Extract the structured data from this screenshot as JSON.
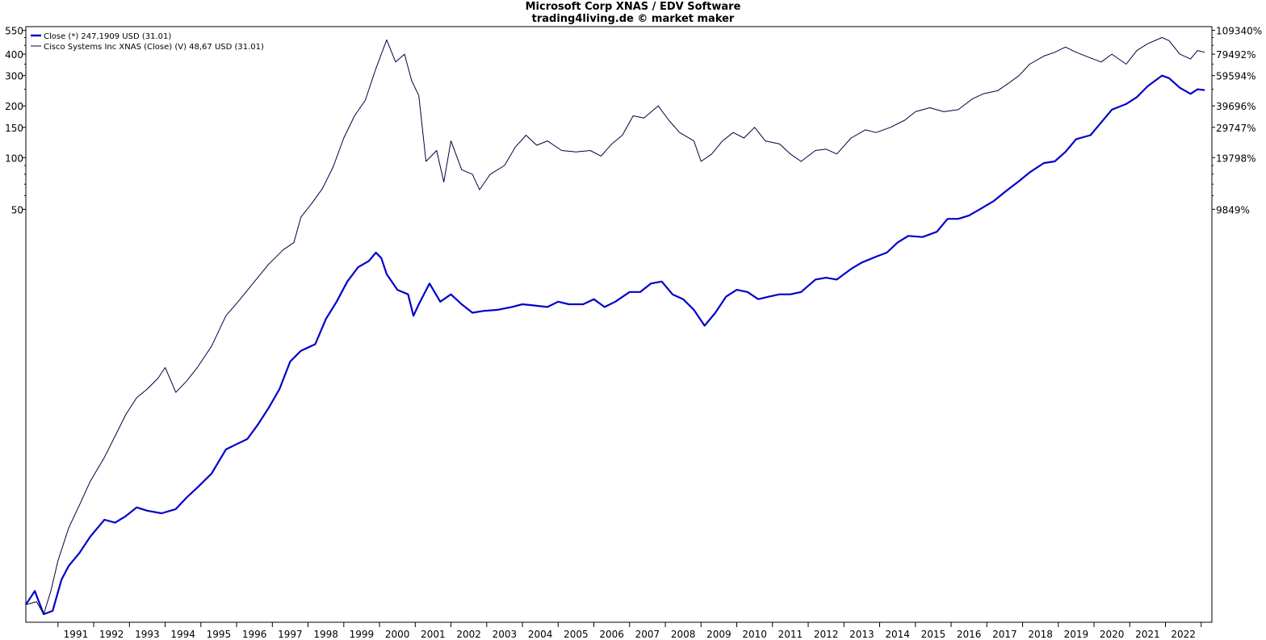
{
  "chart_data": {
    "type": "line",
    "title": "Microsoft Corp XNAS / EDV Software",
    "subtitle": "trading4living.de © market maker",
    "y_scale": "log",
    "left_axis": {
      "ticks": [
        550,
        400,
        300,
        200,
        150,
        100,
        50
      ],
      "labels": [
        "550",
        "400",
        "300",
        "200",
        "150",
        "100",
        "50"
      ]
    },
    "right_axis": {
      "labels": [
        "109340%",
        "79492%",
        "59594%",
        "39696%",
        "29747%",
        "19798%",
        "9849%"
      ]
    },
    "x_ticks": [
      "1991",
      "1992",
      "1993",
      "1994",
      "1995",
      "1996",
      "1997",
      "1998",
      "1999",
      "2000",
      "2001",
      "2002",
      "2003",
      "2004",
      "2005",
      "2006",
      "2007",
      "2008",
      "2009",
      "2010",
      "2011",
      "2012",
      "2013",
      "2014",
      "2015",
      "2016",
      "2017",
      "2018",
      "2019",
      "2020",
      "2021",
      "2022"
    ],
    "legend": [
      {
        "label": "Close (*) 247,1909 USD (31.01)",
        "color": "#0000cc",
        "weight": "bold"
      },
      {
        "label": "Cisco Systems Inc XNAS (Close) (V) 48,67 USD (31.01)",
        "color": "#000040",
        "weight": "thin"
      }
    ],
    "series": [
      {
        "color": "#0000cc",
        "points": [
          [
            1990.1,
            0.25
          ],
          [
            1990.35,
            0.3
          ],
          [
            1990.6,
            0.22
          ],
          [
            1990.85,
            0.23
          ],
          [
            1991.1,
            0.35
          ],
          [
            1991.3,
            0.42
          ],
          [
            1991.6,
            0.5
          ],
          [
            1991.9,
            0.62
          ],
          [
            1992.3,
            0.78
          ],
          [
            1992.6,
            0.75
          ],
          [
            1992.9,
            0.82
          ],
          [
            1993.2,
            0.92
          ],
          [
            1993.5,
            0.88
          ],
          [
            1993.9,
            0.85
          ],
          [
            1994.3,
            0.9
          ],
          [
            1994.6,
            1.05
          ],
          [
            1994.9,
            1.2
          ],
          [
            1995.3,
            1.45
          ],
          [
            1995.7,
            2.0
          ],
          [
            1996.0,
            2.15
          ],
          [
            1996.3,
            2.3
          ],
          [
            1996.6,
            2.8
          ],
          [
            1996.9,
            3.5
          ],
          [
            1997.2,
            4.5
          ],
          [
            1997.5,
            6.5
          ],
          [
            1997.8,
            7.5
          ],
          [
            1998.2,
            8.2
          ],
          [
            1998.5,
            11.5
          ],
          [
            1998.8,
            14.5
          ],
          [
            1999.1,
            19.0
          ],
          [
            1999.4,
            23.0
          ],
          [
            1999.7,
            25.0
          ],
          [
            1999.9,
            28.0
          ],
          [
            2000.05,
            26.0
          ],
          [
            2000.2,
            21.0
          ],
          [
            2000.5,
            17.0
          ],
          [
            2000.8,
            16.0
          ],
          [
            2000.95,
            12.0
          ],
          [
            2001.1,
            14.0
          ],
          [
            2001.4,
            18.5
          ],
          [
            2001.7,
            14.5
          ],
          [
            2002.0,
            16.0
          ],
          [
            2002.3,
            14.0
          ],
          [
            2002.6,
            12.5
          ],
          [
            2002.9,
            12.8
          ],
          [
            2003.3,
            13.0
          ],
          [
            2003.7,
            13.5
          ],
          [
            2004.0,
            14.0
          ],
          [
            2004.3,
            13.8
          ],
          [
            2004.7,
            13.5
          ],
          [
            2005.0,
            14.5
          ],
          [
            2005.3,
            14.0
          ],
          [
            2005.7,
            14.0
          ],
          [
            2006.0,
            15.0
          ],
          [
            2006.3,
            13.5
          ],
          [
            2006.6,
            14.5
          ],
          [
            2007.0,
            16.5
          ],
          [
            2007.3,
            16.5
          ],
          [
            2007.6,
            18.5
          ],
          [
            2007.9,
            19.0
          ],
          [
            2008.2,
            16.0
          ],
          [
            2008.5,
            15.0
          ],
          [
            2008.8,
            13.0
          ],
          [
            2009.1,
            10.5
          ],
          [
            2009.4,
            12.5
          ],
          [
            2009.7,
            15.5
          ],
          [
            2010.0,
            17.0
          ],
          [
            2010.3,
            16.5
          ],
          [
            2010.6,
            15.0
          ],
          [
            2010.9,
            15.5
          ],
          [
            2011.2,
            16.0
          ],
          [
            2011.5,
            16.0
          ],
          [
            2011.8,
            16.5
          ],
          [
            2012.2,
            19.5
          ],
          [
            2012.5,
            20.0
          ],
          [
            2012.8,
            19.5
          ],
          [
            2013.2,
            22.5
          ],
          [
            2013.5,
            24.5
          ],
          [
            2013.9,
            26.5
          ],
          [
            2014.2,
            28.0
          ],
          [
            2014.5,
            32.0
          ],
          [
            2014.8,
            35.0
          ],
          [
            2015.2,
            34.5
          ],
          [
            2015.6,
            37.0
          ],
          [
            2015.9,
            44.0
          ],
          [
            2016.2,
            44.0
          ],
          [
            2016.5,
            46.0
          ],
          [
            2016.8,
            50.0
          ],
          [
            2017.2,
            56.0
          ],
          [
            2017.5,
            63.0
          ],
          [
            2017.9,
            73.0
          ],
          [
            2018.2,
            82.0
          ],
          [
            2018.6,
            93.0
          ],
          [
            2018.9,
            95.0
          ],
          [
            2019.2,
            108.0
          ],
          [
            2019.5,
            128.0
          ],
          [
            2019.9,
            135.0
          ],
          [
            2020.2,
            160.0
          ],
          [
            2020.5,
            190.0
          ],
          [
            2020.9,
            205.0
          ],
          [
            2021.2,
            225.0
          ],
          [
            2021.5,
            260.0
          ],
          [
            2021.9,
            300.0
          ],
          [
            2022.1,
            290.0
          ],
          [
            2022.4,
            255.0
          ],
          [
            2022.7,
            235.0
          ],
          [
            2022.9,
            250.0
          ],
          [
            2023.1,
            247.0
          ]
        ]
      },
      {
        "color": "#000040",
        "points": [
          [
            1990.1,
            0.25
          ],
          [
            1990.4,
            0.26
          ],
          [
            1990.6,
            0.22
          ],
          [
            1990.8,
            0.3
          ],
          [
            1991.0,
            0.45
          ],
          [
            1991.3,
            0.7
          ],
          [
            1991.6,
            0.95
          ],
          [
            1991.9,
            1.3
          ],
          [
            1992.3,
            1.8
          ],
          [
            1992.6,
            2.4
          ],
          [
            1992.9,
            3.2
          ],
          [
            1993.2,
            4.0
          ],
          [
            1993.5,
            4.5
          ],
          [
            1993.8,
            5.2
          ],
          [
            1994.0,
            6.0
          ],
          [
            1994.3,
            4.3
          ],
          [
            1994.6,
            5.0
          ],
          [
            1994.9,
            6.0
          ],
          [
            1995.3,
            8.0
          ],
          [
            1995.7,
            12.0
          ],
          [
            1996.1,
            15.0
          ],
          [
            1996.5,
            19.0
          ],
          [
            1996.9,
            24.0
          ],
          [
            1997.3,
            29.0
          ],
          [
            1997.6,
            32.0
          ],
          [
            1997.8,
            45.0
          ],
          [
            1998.1,
            54.0
          ],
          [
            1998.4,
            66.0
          ],
          [
            1998.7,
            88.0
          ],
          [
            1999.0,
            130.0
          ],
          [
            1999.3,
            175.0
          ],
          [
            1999.6,
            215.0
          ],
          [
            1999.9,
            330.0
          ],
          [
            2000.2,
            485.0
          ],
          [
            2000.45,
            360.0
          ],
          [
            2000.7,
            400.0
          ],
          [
            2000.9,
            280.0
          ],
          [
            2001.1,
            230.0
          ],
          [
            2001.3,
            95.0
          ],
          [
            2001.6,
            110.0
          ],
          [
            2001.8,
            72.0
          ],
          [
            2002.0,
            125.0
          ],
          [
            2002.3,
            85.0
          ],
          [
            2002.6,
            80.0
          ],
          [
            2002.8,
            65.0
          ],
          [
            2003.1,
            80.0
          ],
          [
            2003.5,
            90.0
          ],
          [
            2003.8,
            115.0
          ],
          [
            2004.1,
            135.0
          ],
          [
            2004.4,
            118.0
          ],
          [
            2004.7,
            125.0
          ],
          [
            2005.1,
            110.0
          ],
          [
            2005.5,
            108.0
          ],
          [
            2005.9,
            110.0
          ],
          [
            2006.2,
            102.0
          ],
          [
            2006.5,
            120.0
          ],
          [
            2006.8,
            135.0
          ],
          [
            2007.1,
            175.0
          ],
          [
            2007.4,
            170.0
          ],
          [
            2007.8,
            200.0
          ],
          [
            2008.1,
            165.0
          ],
          [
            2008.4,
            140.0
          ],
          [
            2008.8,
            125.0
          ],
          [
            2009.0,
            95.0
          ],
          [
            2009.3,
            105.0
          ],
          [
            2009.6,
            125.0
          ],
          [
            2009.9,
            140.0
          ],
          [
            2010.2,
            130.0
          ],
          [
            2010.5,
            150.0
          ],
          [
            2010.8,
            125.0
          ],
          [
            2011.2,
            120.0
          ],
          [
            2011.5,
            105.0
          ],
          [
            2011.8,
            95.0
          ],
          [
            2012.2,
            110.0
          ],
          [
            2012.5,
            112.0
          ],
          [
            2012.8,
            105.0
          ],
          [
            2013.2,
            130.0
          ],
          [
            2013.6,
            145.0
          ],
          [
            2013.9,
            140.0
          ],
          [
            2014.3,
            150.0
          ],
          [
            2014.7,
            165.0
          ],
          [
            2015.0,
            185.0
          ],
          [
            2015.4,
            195.0
          ],
          [
            2015.8,
            185.0
          ],
          [
            2016.2,
            190.0
          ],
          [
            2016.6,
            220.0
          ],
          [
            2016.9,
            235.0
          ],
          [
            2017.3,
            245.0
          ],
          [
            2017.6,
            270.0
          ],
          [
            2017.9,
            300.0
          ],
          [
            2018.2,
            350.0
          ],
          [
            2018.6,
            390.0
          ],
          [
            2018.9,
            410.0
          ],
          [
            2019.2,
            440.0
          ],
          [
            2019.5,
            410.0
          ],
          [
            2019.9,
            380.0
          ],
          [
            2020.2,
            360.0
          ],
          [
            2020.5,
            400.0
          ],
          [
            2020.9,
            350.0
          ],
          [
            2021.2,
            420.0
          ],
          [
            2021.5,
            460.0
          ],
          [
            2021.9,
            500.0
          ],
          [
            2022.1,
            480.0
          ],
          [
            2022.4,
            400.0
          ],
          [
            2022.7,
            375.0
          ],
          [
            2022.9,
            420.0
          ],
          [
            2023.1,
            410.0
          ]
        ]
      }
    ]
  }
}
